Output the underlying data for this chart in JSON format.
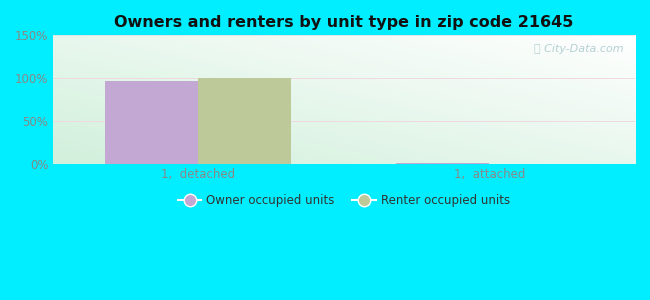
{
  "title": "Owners and renters by unit type in zip code 21645",
  "categories": [
    "1,  detached",
    "1,  attached"
  ],
  "owner_values": [
    97,
    1
  ],
  "renter_values": [
    100,
    0
  ],
  "owner_color": "#c4a8d4",
  "renter_color": "#bec99a",
  "ylim": [
    0,
    150
  ],
  "yticks": [
    0,
    50,
    100,
    150
  ],
  "ytick_labels": [
    "0%",
    "50%",
    "100%",
    "150%"
  ],
  "legend_owner": "Owner occupied units",
  "legend_renter": "Renter occupied units",
  "bar_width": 0.32,
  "background_outer": "#00eeff",
  "watermark": "Ⓢ City-Data.com",
  "grid_color": "#e8e8e8",
  "tick_color": "#888888",
  "title_color": "#111111"
}
